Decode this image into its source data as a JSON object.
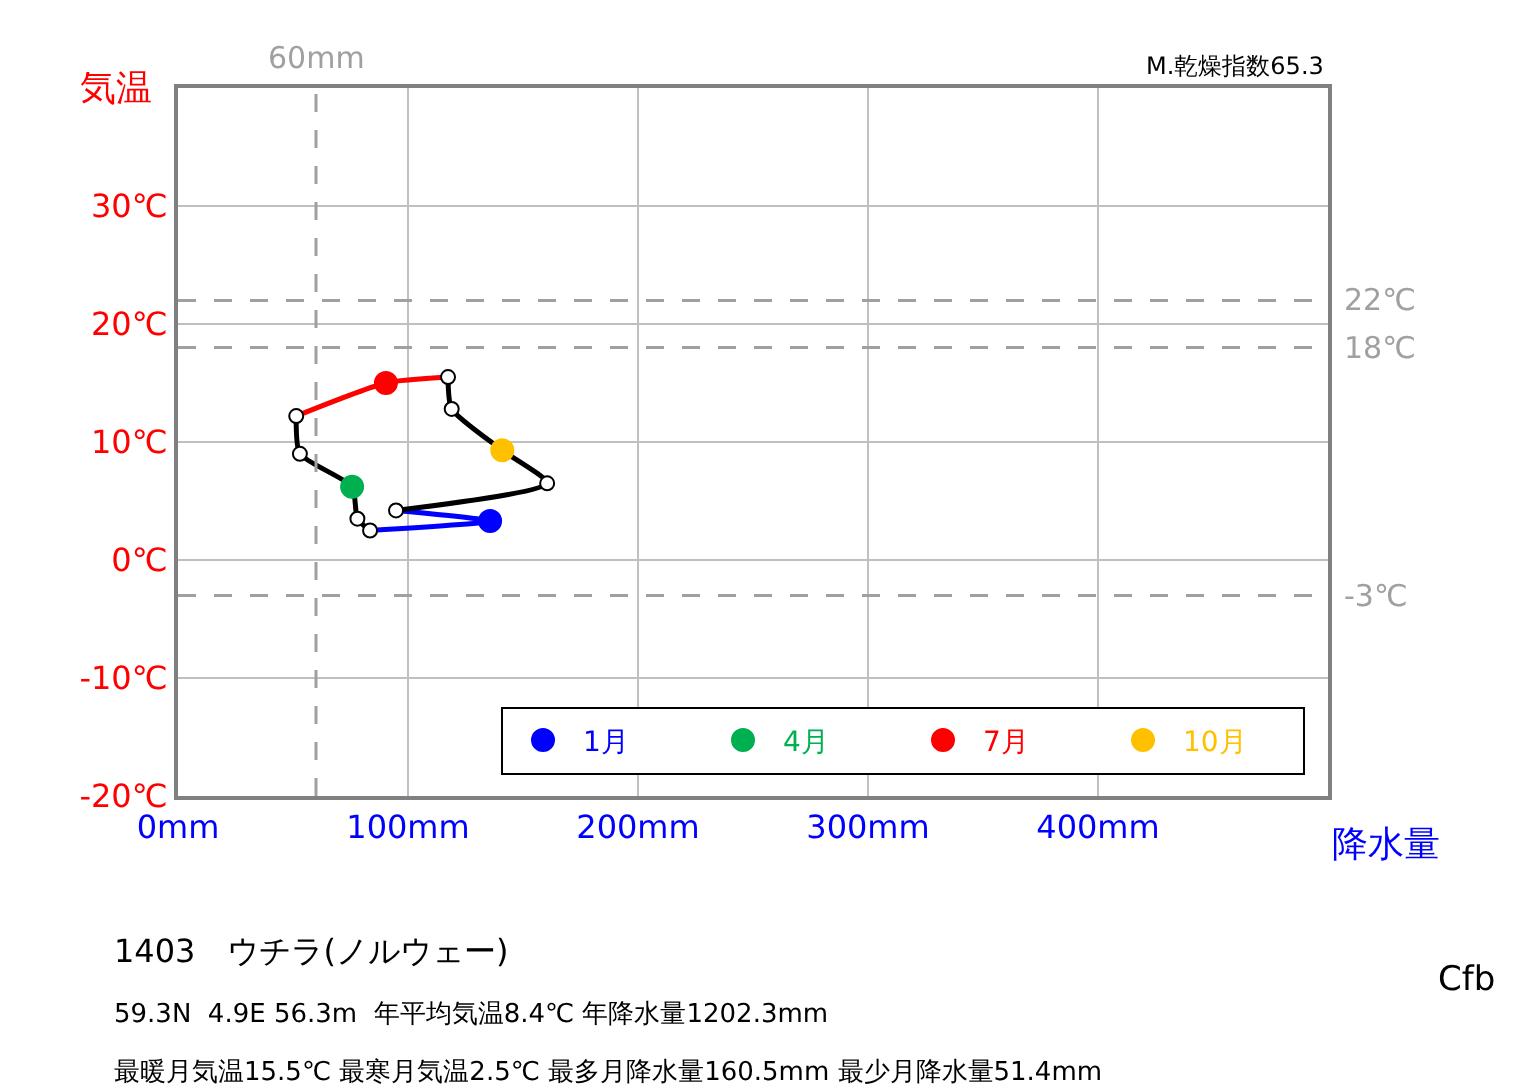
{
  "chart_data": {
    "type": "line",
    "xlabel": "降水量",
    "ylabel": "気温",
    "xlim": [
      0,
      500
    ],
    "xticks": [
      {
        "value": 0,
        "label": "0mm"
      },
      {
        "value": 100,
        "label": "100mm"
      },
      {
        "value": 200,
        "label": "200mm"
      },
      {
        "value": 300,
        "label": "300mm"
      },
      {
        "value": 400,
        "label": "400mm"
      }
    ],
    "ylim": [
      -20,
      40
    ],
    "yticks": [
      {
        "value": -20,
        "label": "-20℃"
      },
      {
        "value": -10,
        "label": "-10℃"
      },
      {
        "value": 0,
        "label": "0℃"
      },
      {
        "value": 10,
        "label": "10℃"
      },
      {
        "value": 20,
        "label": "20℃"
      },
      {
        "value": 30,
        "label": "30℃"
      }
    ],
    "grid": true,
    "legend": "bottom right",
    "series": [
      {
        "color": "#0000ff",
        "x": [
          94.8,
          135.7,
          83.5
        ],
        "values": [
          4.2,
          3.3,
          2.5
        ]
      },
      {
        "color": "#000000",
        "x": [
          83.5,
          78,
          75.7,
          53,
          51.4
        ],
        "values": [
          2.5,
          3.5,
          6.2,
          9.0,
          12.2
        ]
      },
      {
        "color": "#ff0000",
        "x": [
          51.4,
          90.4,
          117.4
        ],
        "values": [
          12.2,
          15.0,
          15.5
        ]
      },
      {
        "color": "#000000",
        "x": [
          117.4,
          119,
          141,
          160.5,
          94.8
        ],
        "values": [
          15.5,
          12.8,
          9.3,
          6.5,
          4.2
        ]
      },
      {
        "type": "scatter",
        "color": "#ffffff",
        "x": [
          83.5,
          78,
          53,
          51.4,
          117.4,
          119,
          160.5,
          94.8
        ],
        "values": [
          2.5,
          3.5,
          9.0,
          12.2,
          15.5,
          12.8,
          6.5,
          4.2
        ],
        "marker": "circle"
      },
      {
        "type": "scatter",
        "name": "1月",
        "color": "#0000ff",
        "x": [
          135.7
        ],
        "values": [
          3.3
        ],
        "marker": "circle"
      },
      {
        "type": "scatter",
        "name": "4月",
        "color": "#00b050",
        "x": [
          75.7
        ],
        "values": [
          6.2
        ],
        "marker": "circle"
      },
      {
        "type": "scatter",
        "name": "7月",
        "color": "#ff0000",
        "x": [
          90.4
        ],
        "values": [
          15.0
        ],
        "marker": "circle"
      },
      {
        "type": "scatter",
        "name": "10月",
        "color": "#ffc000",
        "x": [
          141
        ],
        "values": [
          9.3
        ],
        "marker": "circle"
      }
    ],
    "ref_lines": [
      {
        "axis": "y",
        "value": 22,
        "label": "22℃",
        "color": "#a0a0a0",
        "line_style": "dashed"
      },
      {
        "axis": "y",
        "value": 18,
        "label": "18℃",
        "color": "#a0a0a0",
        "line_style": "dashed"
      },
      {
        "axis": "y",
        "value": -3,
        "label": "-3℃",
        "color": "#a0a0a0",
        "line_style": "dashed"
      },
      {
        "axis": "x",
        "value": 60,
        "label": "60mm",
        "color": "#a0a0a0",
        "line_style": "dashed"
      }
    ],
    "annotations": [
      "M.乾燥指数65.3",
      "1403　ウチラ(ノルウェー)",
      "59.3N  4.9E 56.3m  年平均気温8.4℃ 年降水量1202.3mm",
      "最暖月気温15.5℃ 最寒月気温2.5℃ 最多月降水量160.5mm 最少月降水量51.4mm",
      "Cfb"
    ]
  }
}
